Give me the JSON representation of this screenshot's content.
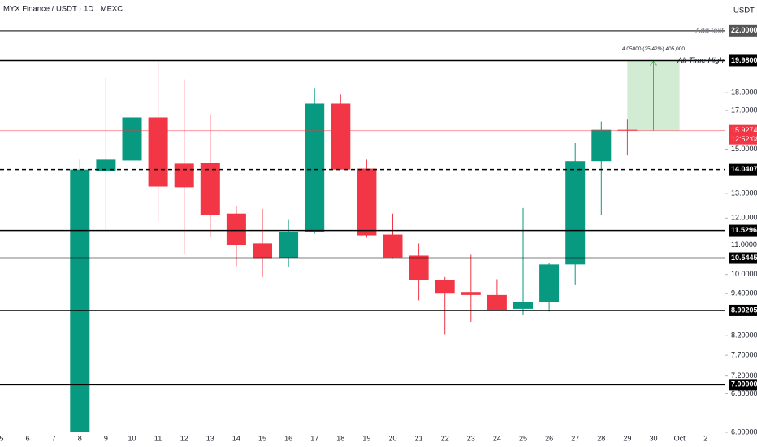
{
  "chart_data": {
    "type": "candlestick",
    "title": "MYX Finance / USDT · 1D · MEXC",
    "currency": "USDT",
    "log_scale": true,
    "up_color": "#089981",
    "down_color": "#f23645",
    "categories": [
      "5",
      "6",
      "7",
      "8",
      "9",
      "10",
      "11",
      "12",
      "13",
      "14",
      "15",
      "16",
      "17",
      "18",
      "19",
      "20",
      "21",
      "22",
      "23",
      "24",
      "25",
      "26",
      "27",
      "28",
      "29",
      "30",
      "Oct",
      "2"
    ],
    "open": [
      null,
      null,
      null,
      6.0,
      13.97,
      14.46,
      16.62,
      14.31,
      14.35,
      12.18,
      11.06,
      10.54,
      11.47,
      17.38,
      14.08,
      11.38,
      10.63,
      9.82,
      9.45,
      9.36,
      8.95,
      9.14,
      10.33,
      14.43,
      15.97,
      null,
      null,
      null
    ],
    "high": [
      null,
      null,
      null,
      14.5,
      18.91,
      18.8,
      19.93,
      18.8,
      16.8,
      12.5,
      12.37,
      11.93,
      18.28,
      17.9,
      14.5,
      12.18,
      11.06,
      9.92,
      10.66,
      9.85,
      12.4,
      10.39,
      15.3,
      16.4,
      16.5,
      null,
      null,
      null
    ],
    "low": [
      null,
      null,
      null,
      5.9,
      11.53,
      13.62,
      11.86,
      10.68,
      11.3,
      10.27,
      9.92,
      10.25,
      11.41,
      14.04,
      11.26,
      10.52,
      9.2,
      8.24,
      8.58,
      8.92,
      8.76,
      8.87,
      9.66,
      12.12,
      14.7,
      null,
      null,
      null
    ],
    "close": [
      null,
      null,
      null,
      14.04,
      14.5,
      16.62,
      13.29,
      13.26,
      12.12,
      11.0,
      10.52,
      11.47,
      17.38,
      14.04,
      11.35,
      10.57,
      9.82,
      9.4,
      9.36,
      8.92,
      9.14,
      10.33,
      14.43,
      15.97,
      15.93,
      null,
      null,
      null
    ],
    "ylim": [
      6.0,
      24.3
    ],
    "yticks": [
      {
        "value": 18,
        "label": "18.00000"
      },
      {
        "value": 17,
        "label": "17.00000"
      },
      {
        "value": 15,
        "label": "15.00000"
      },
      {
        "value": 13,
        "label": "13.00000"
      },
      {
        "value": 12,
        "label": "12.00000"
      },
      {
        "value": 11,
        "label": "11.00000"
      },
      {
        "value": 10,
        "label": "10.00000"
      },
      {
        "value": 9.4,
        "label": "9.40000"
      },
      {
        "value": 8.2,
        "label": "8.20000"
      },
      {
        "value": 7.7,
        "label": "7.70000"
      },
      {
        "value": 7.2,
        "label": "7.20000"
      },
      {
        "value": 6.8,
        "label": "6.80000"
      },
      {
        "value": 6,
        "label": "6.00000"
      }
    ],
    "levels": [
      {
        "value": 22,
        "label": "22.00000",
        "style": "solid",
        "color": "#555555",
        "note": "Add text"
      },
      {
        "value": 19.98,
        "label": "19.98000",
        "style": "solid",
        "color": "#000000",
        "note": "All-Time High"
      },
      {
        "value": 14.04075,
        "label": "14.04075",
        "style": "dashed",
        "color": "#000000"
      },
      {
        "value": 11.52965,
        "label": "11.52965",
        "style": "solid",
        "color": "#000000"
      },
      {
        "value": 10.54452,
        "label": "10.54452",
        "style": "solid",
        "color": "#000000"
      },
      {
        "value": 8.90205,
        "label": "8.90205",
        "style": "solid",
        "color": "#000000"
      },
      {
        "value": 7,
        "label": "7.00000",
        "style": "solid",
        "color": "#000000"
      }
    ],
    "last_price": 15.92748,
    "countdown": "12:52:08",
    "measure": {
      "from": 15.93,
      "to": 19.98,
      "from_category": "29",
      "to_category": "Oct",
      "label": "4.05000 (25.42%) 405,000",
      "color": "#4caf50"
    }
  }
}
